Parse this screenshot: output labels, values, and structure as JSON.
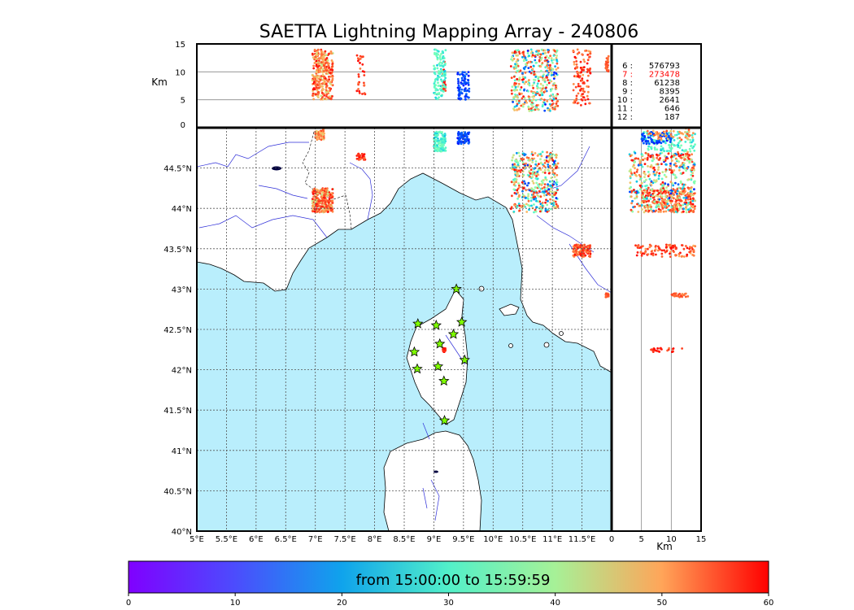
{
  "colors": {
    "sea": "#b9eefc",
    "land": "#ffffff",
    "coast": "#000000",
    "rivers": "#2f2fd8",
    "grid": "#555555",
    "stations": "#7fff00",
    "highlight": "#ff0000"
  },
  "chart_data": {
    "type": "scatter",
    "title": "SAETTA Lightning Mapping Array - 240806",
    "colormap": "rainbow",
    "time_range_label": "from 15:00:00 to 15:59:59",
    "colorbar": {
      "min": 0,
      "max": 60,
      "ticks": [
        "0",
        "10",
        "20",
        "30",
        "40",
        "50",
        "60"
      ]
    },
    "map": {
      "lon_range": [
        5,
        12
      ],
      "lat_range": [
        40,
        45
      ],
      "x_ticks": [
        "5°E",
        "5.5°E",
        "6°E",
        "6.5°E",
        "7°E",
        "7.5°E",
        "8°E",
        "8.5°E",
        "9°E",
        "9.5°E",
        "10°E",
        "10.5°E",
        "11°E",
        "11.5°E"
      ],
      "y_ticks": [
        "40°N",
        "40.5°N",
        "41°N",
        "41.5°N",
        "42°N",
        "42.5°N",
        "43°N",
        "43.5°N",
        "44°N",
        "44.5°N"
      ]
    },
    "altitude_lon_panel": {
      "ylabel": "Km",
      "y_range": [
        0,
        15
      ],
      "y_ticks": [
        "0",
        "5",
        "10",
        "15"
      ],
      "gridlines_km": [
        5,
        10
      ]
    },
    "altitude_lat_panel": {
      "xlabel": "Km",
      "x_range": [
        0,
        15
      ],
      "x_ticks": [
        "0",
        "5",
        "10",
        "15"
      ],
      "gridlines_km": [
        5,
        10
      ]
    },
    "counts": [
      {
        "label": "6 :",
        "value": "576793",
        "highlight": false
      },
      {
        "label": "7 :",
        "value": "273478",
        "highlight": true
      },
      {
        "label": "8 :",
        "value": "61238",
        "highlight": false
      },
      {
        "label": "9 :",
        "value": "8395",
        "highlight": false
      },
      {
        "label": "10 :",
        "value": "2641",
        "highlight": false
      },
      {
        "label": "11 :",
        "value": "646",
        "highlight": false
      },
      {
        "label": "12 :",
        "value": "187",
        "highlight": false
      }
    ],
    "stations": [
      {
        "lon": 9.38,
        "lat": 43.0
      },
      {
        "lon": 8.73,
        "lat": 42.57
      },
      {
        "lon": 9.04,
        "lat": 42.55
      },
      {
        "lon": 9.47,
        "lat": 42.59
      },
      {
        "lon": 9.33,
        "lat": 42.44
      },
      {
        "lon": 9.1,
        "lat": 42.32
      },
      {
        "lon": 8.67,
        "lat": 42.22
      },
      {
        "lon": 9.07,
        "lat": 42.04
      },
      {
        "lon": 8.72,
        "lat": 42.01
      },
      {
        "lon": 9.52,
        "lat": 42.12
      },
      {
        "lon": 9.17,
        "lat": 41.86
      },
      {
        "lon": 9.18,
        "lat": 41.37
      }
    ],
    "clusters": [
      {
        "lon": [
          6.95,
          7.3
        ],
        "lat": [
          43.95,
          44.25
        ],
        "alt": [
          5,
          14
        ],
        "time": [
          35,
          60
        ]
      },
      {
        "lon": [
          10.3,
          11.1
        ],
        "lat": [
          43.95,
          44.7
        ],
        "alt": [
          3,
          14
        ],
        "time": [
          0,
          60
        ]
      },
      {
        "lon": [
          11.35,
          11.65
        ],
        "lat": [
          43.4,
          43.55
        ],
        "alt": [
          4,
          14
        ],
        "time": [
          45,
          60
        ]
      },
      {
        "lon": [
          9.15,
          9.2
        ],
        "lat": [
          42.22,
          42.27
        ],
        "alt": [
          6,
          12
        ],
        "time": [
          50,
          60
        ]
      },
      {
        "lon": [
          9.0,
          9.2
        ],
        "lat": [
          44.7,
          44.95
        ],
        "alt": [
          5,
          14
        ],
        "time": [
          15,
          30
        ]
      },
      {
        "lon": [
          9.4,
          9.6
        ],
        "lat": [
          44.8,
          44.95
        ],
        "alt": [
          5,
          10
        ],
        "time": [
          0,
          8
        ]
      },
      {
        "lon": [
          7.7,
          7.85
        ],
        "lat": [
          44.6,
          44.68
        ],
        "alt": [
          6,
          13
        ],
        "time": [
          50,
          60
        ]
      },
      {
        "lon": [
          7.0,
          7.15
        ],
        "lat": [
          44.85,
          45.0
        ],
        "alt": [
          6,
          14
        ],
        "time": [
          40,
          55
        ]
      },
      {
        "lon": [
          11.9,
          11.95
        ],
        "lat": [
          42.9,
          42.95
        ],
        "alt": [
          10,
          13
        ],
        "time": [
          48,
          55
        ]
      }
    ]
  }
}
